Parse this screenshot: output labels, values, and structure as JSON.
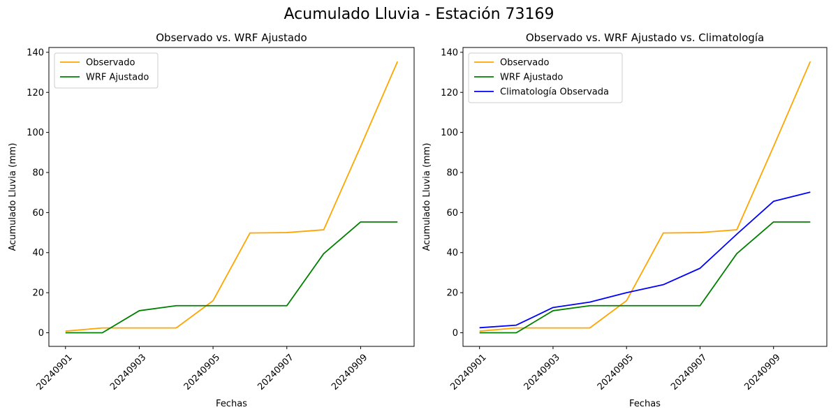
{
  "figure": {
    "suptitle": "Acumulado Lluvia - Estación 73169"
  },
  "colors": {
    "Observado": "#ffa500",
    "WRF Ajustado": "#008000",
    "Climatología Observada": "#0000ff"
  },
  "chart_data": [
    {
      "type": "line",
      "title": "Observado vs. WRF Ajustado",
      "xlabel": "Fechas",
      "ylabel": "Acumulado Lluvia (mm)",
      "x": [
        "20240901",
        "20240902",
        "20240903",
        "20240904",
        "20240905",
        "20240906",
        "20240907",
        "20240908",
        "20240909",
        "20240910"
      ],
      "xticks": [
        "20240901",
        "20240903",
        "20240905",
        "20240907",
        "20240909"
      ],
      "yticks": [
        0,
        20,
        40,
        60,
        80,
        100,
        120,
        140
      ],
      "ylim": [
        -6.8,
        142.4
      ],
      "grid": false,
      "legend": "top-left",
      "series": [
        {
          "name": "Observado",
          "values": [
            0.8,
            2.4,
            2.4,
            2.4,
            16.0,
            49.8,
            50.0,
            51.4,
            93.0,
            135.4
          ]
        },
        {
          "name": "WRF Ajustado",
          "values": [
            0.0,
            0.0,
            11.0,
            13.5,
            13.5,
            13.5,
            13.5,
            39.5,
            55.3,
            55.3
          ]
        }
      ]
    },
    {
      "type": "line",
      "title": "Observado vs. WRF Ajustado vs. Climatología",
      "xlabel": "Fechas",
      "ylabel": "Acumulado Lluvia (mm)",
      "x": [
        "20240901",
        "20240902",
        "20240903",
        "20240904",
        "20240905",
        "20240906",
        "20240907",
        "20240908",
        "20240909",
        "20240910"
      ],
      "xticks": [
        "20240901",
        "20240903",
        "20240905",
        "20240907",
        "20240909"
      ],
      "yticks": [
        0,
        20,
        40,
        60,
        80,
        100,
        120,
        140
      ],
      "ylim": [
        -6.8,
        142.4
      ],
      "grid": false,
      "legend": "top-left",
      "series": [
        {
          "name": "Observado",
          "values": [
            0.8,
            2.4,
            2.4,
            2.4,
            16.0,
            49.8,
            50.0,
            51.4,
            93.0,
            135.4
          ]
        },
        {
          "name": "WRF Ajustado",
          "values": [
            0.0,
            0.0,
            11.0,
            13.5,
            13.5,
            13.5,
            13.5,
            39.5,
            55.3,
            55.3
          ]
        },
        {
          "name": "Climatología Observada",
          "values": [
            2.5,
            3.8,
            12.6,
            15.3,
            20.0,
            24.0,
            32.2,
            49.2,
            65.6,
            70.2
          ]
        }
      ]
    }
  ]
}
